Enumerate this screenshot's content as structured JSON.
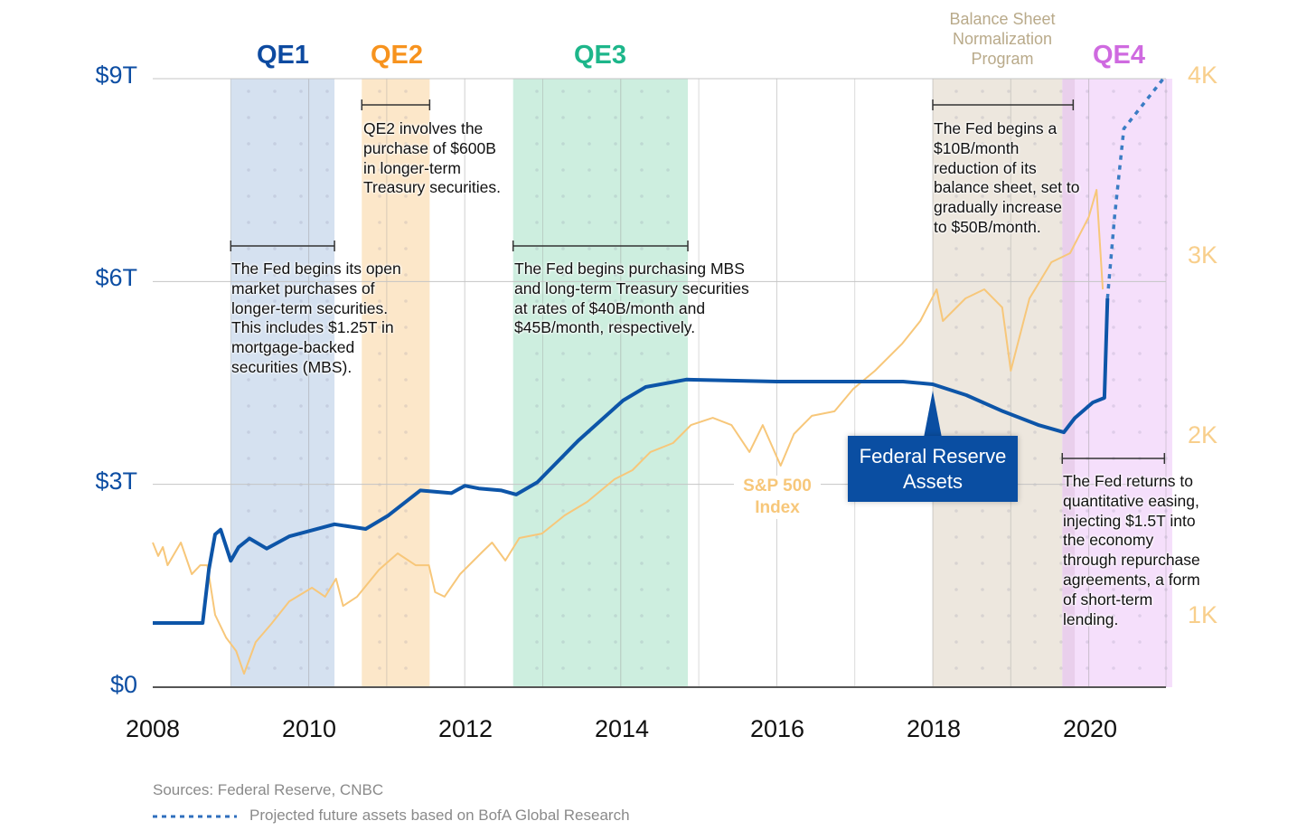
{
  "chart_data": {
    "type": "line",
    "title": "",
    "xlabel": "",
    "x_ticks": [
      "2008",
      "2010",
      "2012",
      "2014",
      "2016",
      "2018",
      "2020"
    ],
    "xlim": [
      2008,
      2021
    ],
    "y_left": {
      "label": "Federal Reserve Assets",
      "unit": "$T",
      "ylim": [
        0,
        9
      ],
      "ticks": [
        "$0",
        "$3T",
        "$6T",
        "$9T"
      ]
    },
    "y_right": {
      "label": "S&P 500 Index",
      "unit": "points",
      "ylim": [
        0,
        4000
      ],
      "ticks": [
        "1K",
        "2K",
        "3K",
        "4K"
      ]
    },
    "grid": true,
    "bands": [
      {
        "name": "QE1",
        "start": 2009.0,
        "end": 2010.33,
        "color": "#d5e1f0",
        "label_color": "#0d4aa0"
      },
      {
        "name": "QE2",
        "start": 2010.68,
        "end": 2011.55,
        "color": "#fce7c9",
        "label_color": "#f7931e"
      },
      {
        "name": "QE3",
        "start": 2012.62,
        "end": 2014.86,
        "color": "#cdeedf",
        "label_color": "#1db68a"
      },
      {
        "name": "Balance Sheet\nNormalization\nProgram",
        "start": 2018.0,
        "end": 2019.66,
        "color": "#ede7de",
        "label_color": "#b9aa8a"
      },
      {
        "name": "QE4",
        "start": 2019.66,
        "end": 2021.07,
        "color": "#f5dffb",
        "label_color": "#cf6ae0"
      }
    ],
    "series": [
      {
        "name": "Federal Reserve Assets",
        "axis": "left",
        "color": "#0d55a8",
        "x": [
          2008.0,
          2008.64,
          2008.72,
          2008.8,
          2008.87,
          2009.0,
          2009.1,
          2009.24,
          2009.46,
          2009.75,
          2010.33,
          2010.73,
          2011.02,
          2011.43,
          2011.83,
          2012.0,
          2012.18,
          2012.47,
          2012.66,
          2012.93,
          2013.45,
          2014.03,
          2014.32,
          2014.84,
          2016.0,
          2017.62,
          2018.0,
          2018.43,
          2018.9,
          2019.35,
          2019.68,
          2019.82,
          2020.05,
          2020.2,
          2020.24
        ],
        "values": [
          0.95,
          0.95,
          1.74,
          2.26,
          2.33,
          1.87,
          2.07,
          2.2,
          2.05,
          2.23,
          2.41,
          2.34,
          2.54,
          2.91,
          2.87,
          2.98,
          2.94,
          2.91,
          2.85,
          3.03,
          3.64,
          4.24,
          4.44,
          4.55,
          4.52,
          4.52,
          4.48,
          4.32,
          4.08,
          3.88,
          3.77,
          3.98,
          4.21,
          4.28,
          5.75
        ]
      },
      {
        "name": "Projected future assets based on BofA Global Research",
        "axis": "left",
        "color": "#3a7cc4",
        "style": "dotted",
        "x": [
          2020.24,
          2020.33,
          2020.45,
          2020.97
        ],
        "values": [
          5.75,
          6.95,
          8.26,
          9.02
        ]
      },
      {
        "name": "S&P 500 Index",
        "axis": "right",
        "color": "#f7c77a",
        "x": [
          2008.0,
          2008.07,
          2008.13,
          2008.19,
          2008.36,
          2008.5,
          2008.61,
          2008.7,
          2008.8,
          2008.94,
          2009.07,
          2009.17,
          2009.32,
          2009.52,
          2009.75,
          2010.04,
          2010.21,
          2010.35,
          2010.44,
          2010.62,
          2010.9,
          2011.14,
          2011.37,
          2011.54,
          2011.62,
          2011.74,
          2011.94,
          2012.23,
          2012.35,
          2012.52,
          2012.7,
          2012.99,
          2013.28,
          2013.57,
          2013.92,
          2014.15,
          2014.38,
          2014.67,
          2014.9,
          2015.18,
          2015.42,
          2015.65,
          2015.82,
          2016.05,
          2016.22,
          2016.45,
          2016.74,
          2016.98,
          2017.26,
          2017.61,
          2017.84,
          2018.05,
          2018.13,
          2018.42,
          2018.66,
          2018.89,
          2019.0,
          2019.24,
          2019.52,
          2019.76,
          2020.0,
          2020.1,
          2020.18
        ],
        "values": [
          1412,
          1337,
          1387,
          1286,
          1412,
          1236,
          1286,
          1286,
          1010,
          884,
          809,
          683,
          859,
          960,
          1085,
          1161,
          1111,
          1211,
          1060,
          1111,
          1261,
          1352,
          1286,
          1286,
          1136,
          1111,
          1236,
          1362,
          1412,
          1312,
          1437,
          1462,
          1563,
          1638,
          1764,
          1814,
          1915,
          1965,
          2065,
          2105,
          2065,
          1915,
          2065,
          1839,
          2015,
          2116,
          2141,
          2266,
          2367,
          2518,
          2643,
          2819,
          2643,
          2769,
          2819,
          2719,
          2367,
          2769,
          2970,
          3020,
          3221,
          3372,
          2819
        ]
      }
    ],
    "annotations": [
      {
        "band": "QE1",
        "text": "The Fed begins its open\nmarket purchases of\nlonger-term securities.\nThis includes $1.25T in\nmortgage-backed\nsecurities (MBS)."
      },
      {
        "band": "QE2",
        "text": "QE2 involves the\npurchase of $600B\nin longer-term\nTreasury securities."
      },
      {
        "band": "QE3",
        "text": "The Fed begins purchasing MBS\nand long-term Treasury securities\nat rates of $40B/month and\n$45B/month, respectively."
      },
      {
        "band": "Balance Sheet Normalization Program",
        "text": "The Fed begins a\n$10B/month\nreduction of its\nbalance sheet, set to\ngradually increase\nto $50B/month."
      },
      {
        "band": "QE4",
        "text": "The Fed returns to\nquantitative easing,\ninjecting $1.5T into\nthe economy\nthrough repurchase\nagreements, a form\nof short-term\nlending."
      }
    ],
    "series_labels": {
      "fed": "Federal Reserve\nAssets",
      "sp": "S&P 500\nIndex"
    },
    "footnotes": {
      "sources": "Sources: Federal Reserve, CNBC",
      "projection_legend": "Projected future assets based on BofA Global Research"
    }
  }
}
